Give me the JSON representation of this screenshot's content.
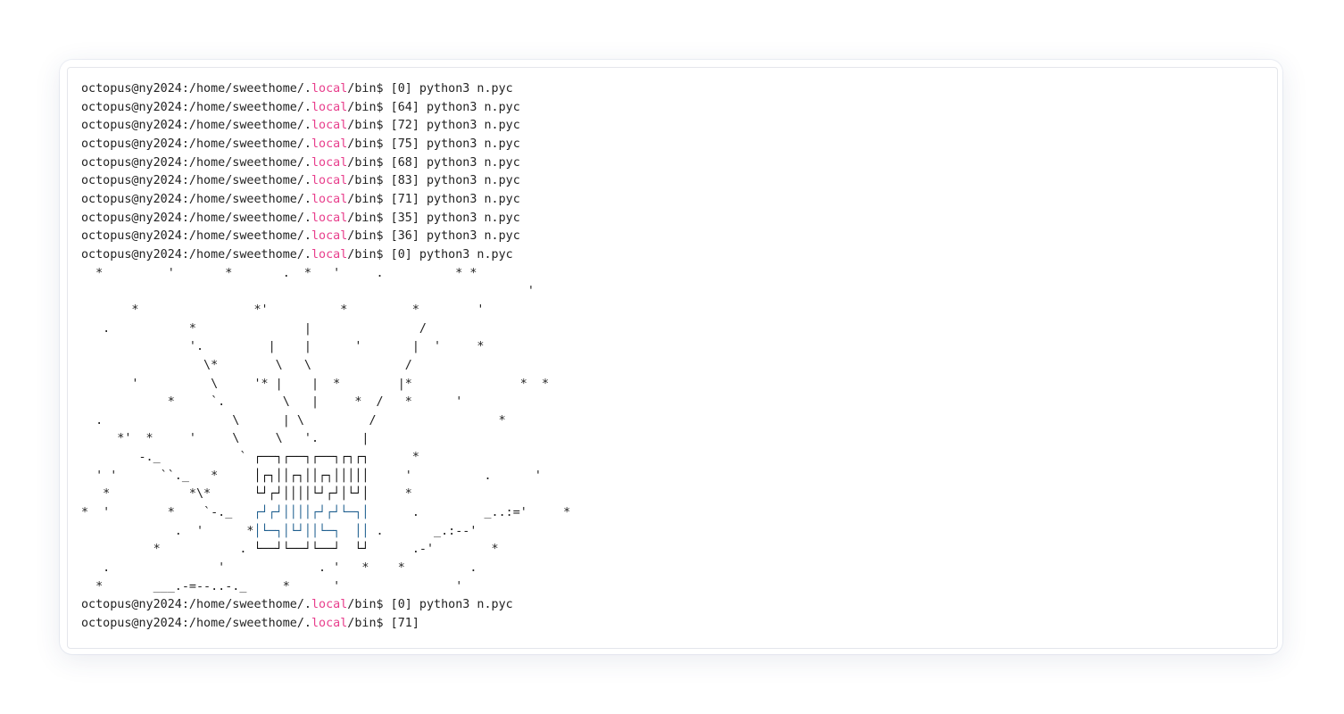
{
  "prompt": {
    "prefix": "octopus@ny2024:/home/sweethome/.",
    "local": "local",
    "suffix": "/bin$ "
  },
  "colors": {
    "local": "#e83e8c",
    "box_top": "#111111",
    "box_blue": "#1f5f8f",
    "text": "#222222"
  },
  "commands_before": [
    {
      "code": "[0]",
      "cmd": "python3 n.pyc"
    },
    {
      "code": "[64]",
      "cmd": "python3 n.pyc"
    },
    {
      "code": "[72]",
      "cmd": "python3 n.pyc"
    },
    {
      "code": "[75]",
      "cmd": "python3 n.pyc"
    },
    {
      "code": "[68]",
      "cmd": "python3 n.pyc"
    },
    {
      "code": "[83]",
      "cmd": "python3 n.pyc"
    },
    {
      "code": "[71]",
      "cmd": "python3 n.pyc"
    },
    {
      "code": "[35]",
      "cmd": "python3 n.pyc"
    },
    {
      "code": "[36]",
      "cmd": "python3 n.pyc"
    },
    {
      "code": "[0]",
      "cmd": "python3 n.pyc"
    }
  ],
  "art": [
    [
      [
        "  *         '       *       .  *   '     .          * *",
        ""
      ]
    ],
    [
      [
        "                                                              '",
        ""
      ]
    ],
    [
      [
        "       *                *'          *         *        '",
        ""
      ]
    ],
    [
      [
        "   .           *               |               /",
        ""
      ]
    ],
    [
      [
        "               '.         |    |      '       |  '     *",
        ""
      ]
    ],
    [
      [
        "                 \\*        \\   \\             /",
        ""
      ]
    ],
    [
      [
        "       '          \\     '* |    |  *        |*               *  *",
        ""
      ]
    ],
    [
      [
        "            *     `.        \\   |     *  /   *      '",
        ""
      ]
    ],
    [
      [
        "  .                  \\      | \\         /                 *",
        ""
      ]
    ],
    [
      [
        "     *'  *     '     \\     \\   '.      |",
        ""
      ]
    ],
    [
      [
        "        -._           ` ",
        ""
      ],
      [
        "┌──┐┌──┐┌──┐┌┐┌┐",
        "dark"
      ],
      [
        "      *",
        ""
      ]
    ],
    [
      [
        "  ' '      ``._   *     ",
        ""
      ],
      [
        "│┌┐││┌┐││┌┐│││││",
        "dark"
      ],
      [
        "     '          .      '",
        ""
      ]
    ],
    [
      [
        "   *           *\\*      ",
        ""
      ],
      [
        "└┘┌┘││││└┘┌┘│└┘│",
        "dark"
      ],
      [
        "     *",
        ""
      ]
    ],
    [
      [
        "*  '        *    `-._   ",
        ""
      ],
      [
        "┌┘┌┘││││┌┘┌┘└─┐│",
        "blue"
      ],
      [
        "      .         _..:='     *",
        ""
      ]
    ],
    [
      [
        "             .  '      *",
        ""
      ],
      [
        "│└─┐│└┘││└─┐  ││",
        "blue"
      ],
      [
        " .       _.:--'",
        ""
      ]
    ],
    [
      [
        "          *           . ",
        ""
      ],
      [
        "└──┘└──┘└──┘  └┘",
        "dark"
      ],
      [
        "      .-'        *",
        ""
      ]
    ],
    [
      [
        "   .               '             . '   *    *         .",
        ""
      ]
    ],
    [
      [
        "  *       ___.-=--..-._     *      '                '",
        ""
      ]
    ]
  ],
  "commands_after": [
    {
      "code": "[0]",
      "cmd": "python3 n.pyc"
    },
    {
      "code": "[71]",
      "cmd": ""
    }
  ]
}
